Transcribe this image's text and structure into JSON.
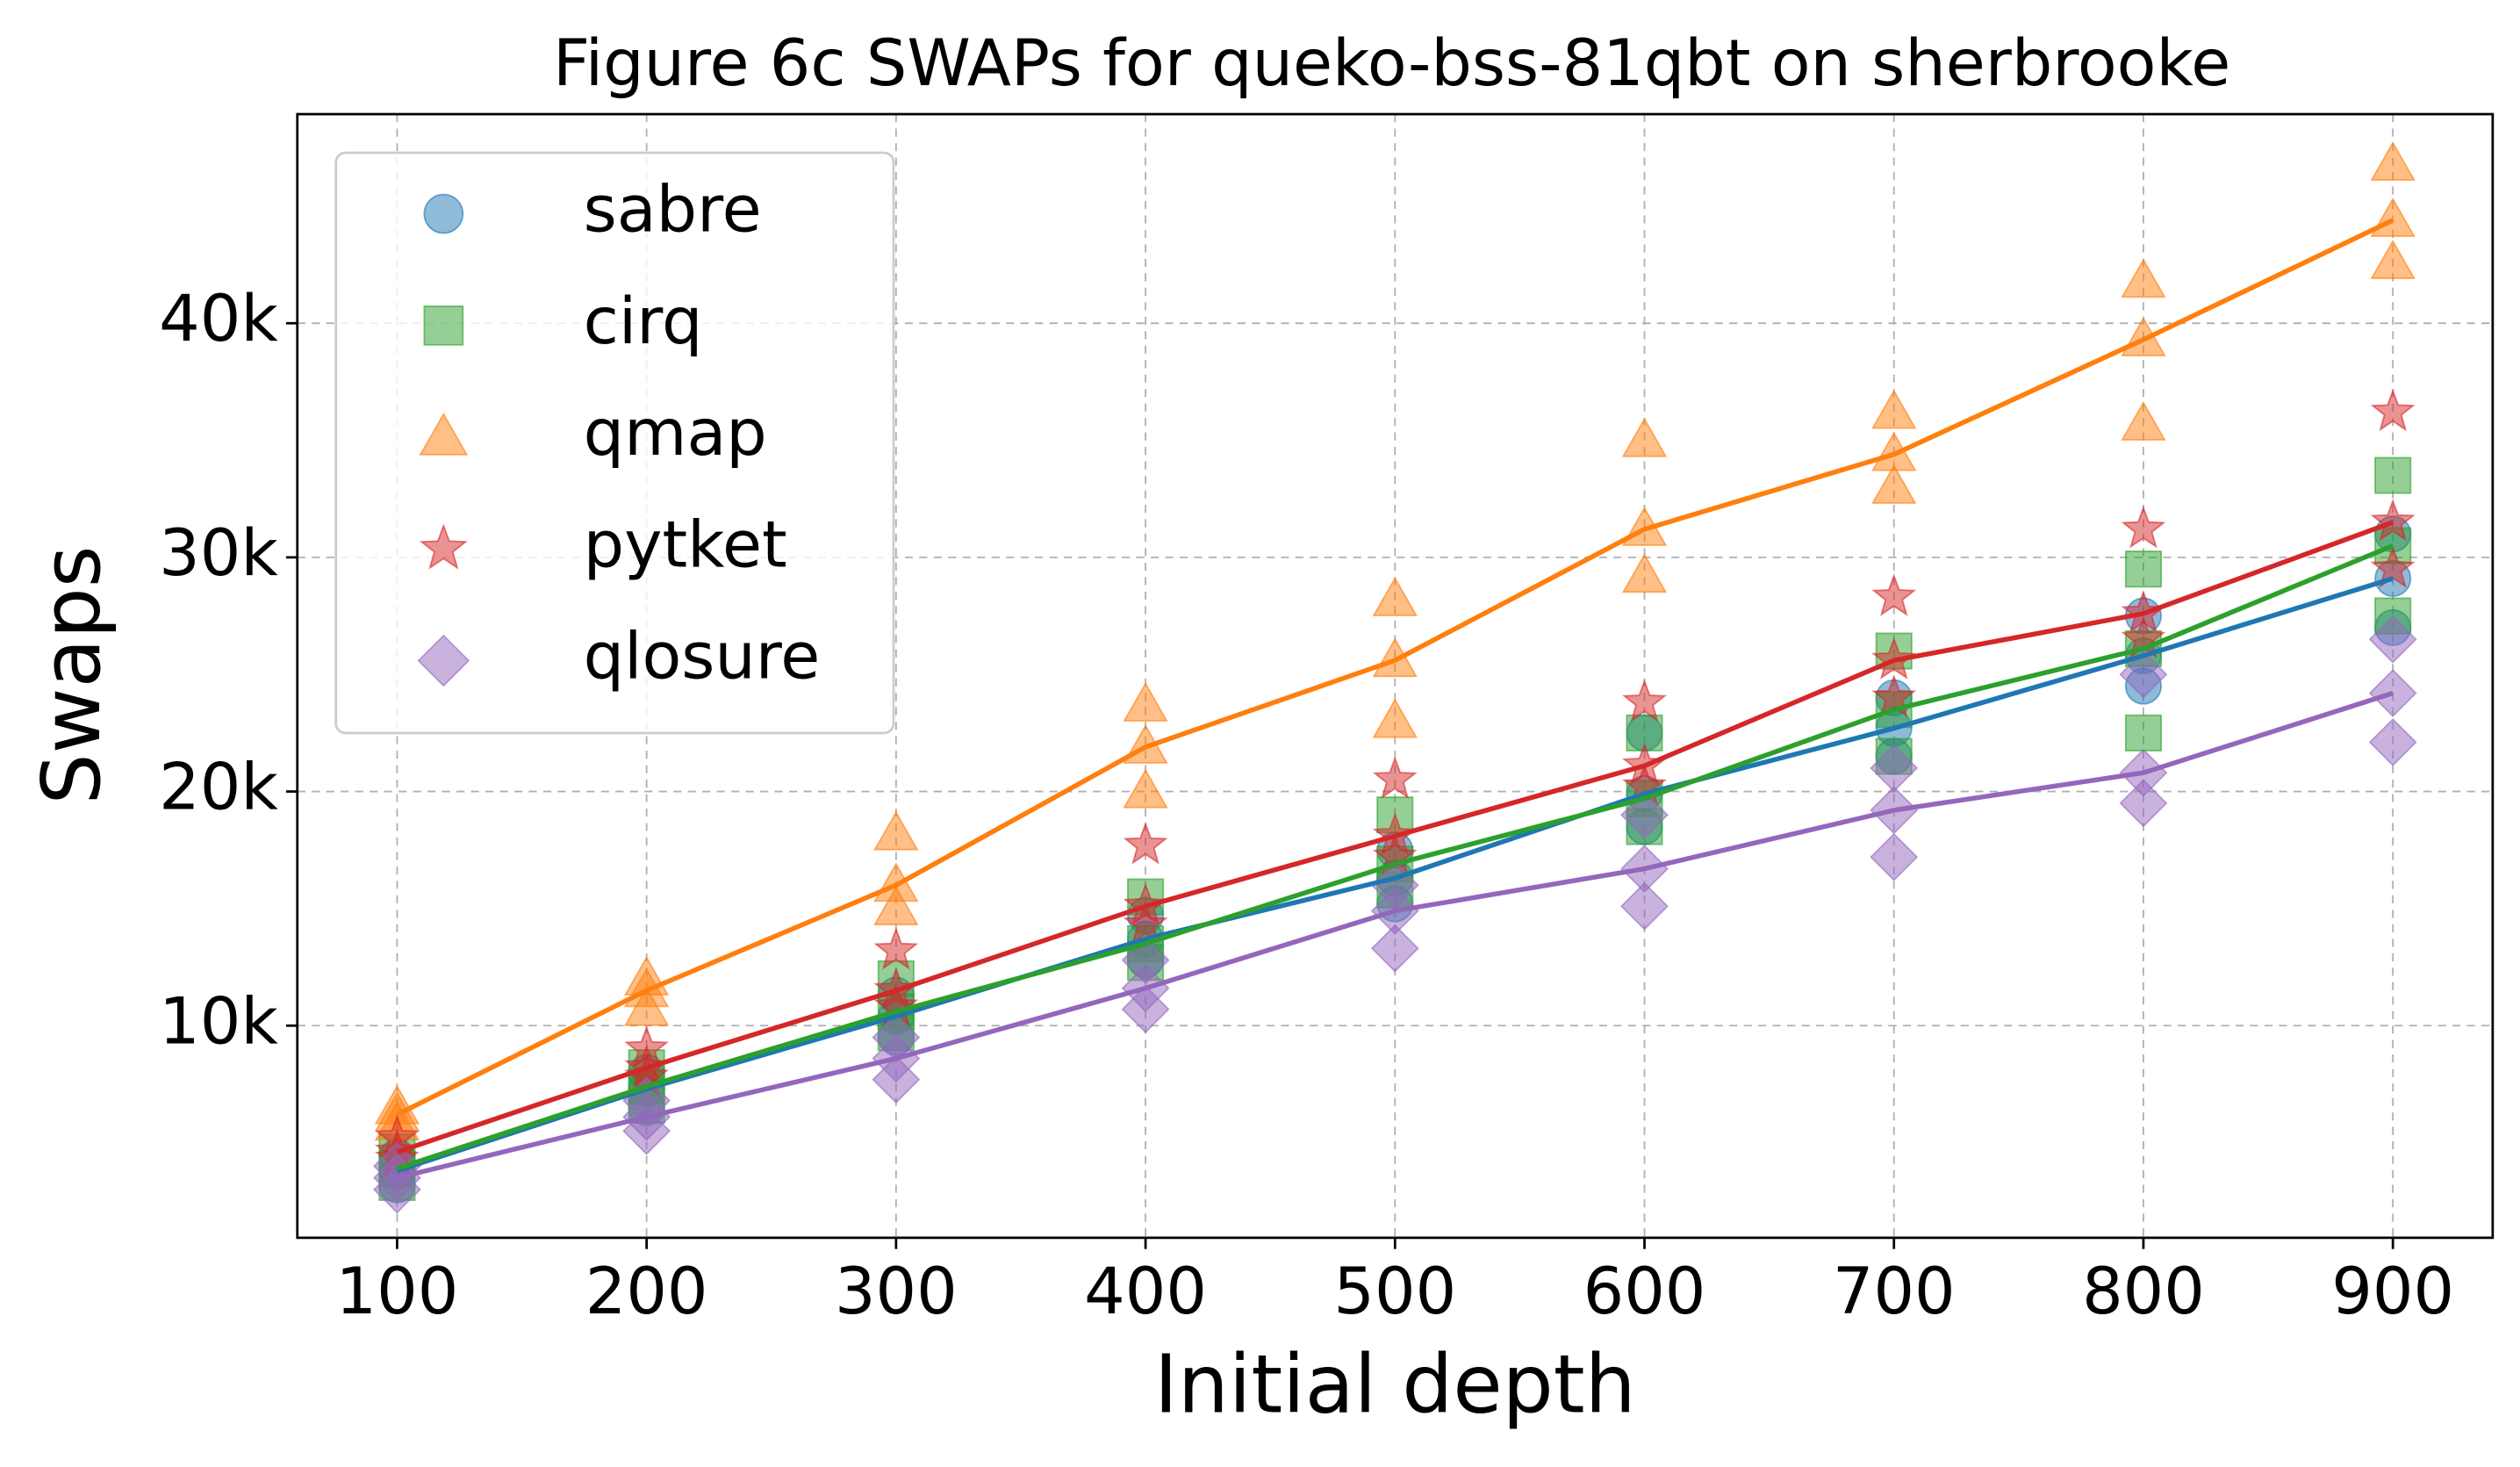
{
  "chart_data": {
    "type": "scatter",
    "title": "Figure 6c SWAPs for queko-bss-81qbt on sherbrooke",
    "xlabel": "Initial depth",
    "ylabel": "Swaps",
    "x": [
      100,
      200,
      300,
      400,
      500,
      600,
      700,
      800,
      900
    ],
    "xlim": [
      60,
      940
    ],
    "ylim": [
      940,
      48930
    ],
    "xticks": [
      100,
      200,
      300,
      400,
      500,
      600,
      700,
      800,
      900
    ],
    "yticks": [
      {
        "value": 10000,
        "label": "10k"
      },
      {
        "value": 20000,
        "label": "20k"
      },
      {
        "value": 30000,
        "label": "30k"
      },
      {
        "value": 40000,
        "label": "40k"
      }
    ],
    "grid": true,
    "legend": "upper left",
    "series": [
      {
        "name": "sabre",
        "color": "#1f77b4",
        "marker": "circle",
        "values": [
          3800,
          7300,
          10400,
          13700,
          16300,
          19900,
          22700,
          25800,
          29100
        ],
        "scatter_x": [
          100,
          100,
          100,
          200,
          200,
          200,
          300,
          300,
          300,
          400,
          400,
          400,
          500,
          500,
          500,
          600,
          600,
          600,
          700,
          700,
          700,
          800,
          800,
          800,
          900,
          900,
          900
        ],
        "scatter_y": [
          3200,
          3800,
          4400,
          6500,
          7300,
          8000,
          9500,
          10400,
          11300,
          12800,
          13700,
          14700,
          15200,
          16300,
          17500,
          18500,
          19900,
          22500,
          21500,
          22700,
          24000,
          24500,
          25800,
          27500,
          27000,
          29100,
          31000
        ]
      },
      {
        "name": "cirq",
        "color": "#2ca02c",
        "marker": "square",
        "values": [
          3900,
          7400,
          10600,
          13500,
          16900,
          19700,
          23500,
          26100,
          30500
        ],
        "scatter_x": [
          100,
          100,
          100,
          200,
          200,
          200,
          300,
          300,
          300,
          400,
          400,
          400,
          500,
          500,
          500,
          600,
          600,
          600,
          700,
          700,
          700,
          800,
          800,
          800,
          900,
          900,
          900
        ],
        "scatter_y": [
          3300,
          3900,
          4600,
          6600,
          7400,
          8200,
          9700,
          10600,
          12000,
          12700,
          13500,
          15500,
          15800,
          16900,
          19000,
          18500,
          19700,
          22500,
          21500,
          23500,
          26000,
          22500,
          26100,
          29500,
          27500,
          30500,
          33500
        ]
      },
      {
        "name": "qmap",
        "color": "#ff7f0e",
        "marker": "triangle",
        "values": [
          6200,
          11500,
          16000,
          21900,
          25600,
          31200,
          34400,
          39300,
          44400
        ],
        "scatter_x": [
          100,
          100,
          100,
          200,
          200,
          200,
          300,
          300,
          300,
          400,
          400,
          400,
          500,
          500,
          500,
          600,
          600,
          600,
          700,
          700,
          700,
          800,
          800,
          800,
          900,
          900,
          900
        ],
        "scatter_y": [
          5800,
          6200,
          6500,
          10700,
          11500,
          12000,
          15000,
          16000,
          18200,
          20000,
          21900,
          23700,
          23000,
          25600,
          28200,
          29200,
          31200,
          35000,
          33000,
          34400,
          36200,
          35700,
          39300,
          41800,
          42600,
          44400,
          46800
        ]
      },
      {
        "name": "pytket",
        "color": "#d62728",
        "marker": "star",
        "values": [
          4600,
          8200,
          11500,
          15100,
          18100,
          21100,
          25600,
          27600,
          31500
        ],
        "scatter_x": [
          100,
          100,
          100,
          200,
          200,
          200,
          300,
          300,
          300,
          400,
          400,
          400,
          500,
          500,
          500,
          600,
          600,
          600,
          700,
          700,
          700,
          800,
          800,
          800,
          900,
          900,
          900
        ],
        "scatter_y": [
          4300,
          4600,
          5200,
          7800,
          8200,
          9000,
          10800,
          11500,
          13200,
          14300,
          15100,
          17700,
          17200,
          18100,
          20500,
          20200,
          21100,
          23800,
          24000,
          25600,
          28300,
          26500,
          27600,
          31200,
          29500,
          31500,
          36200
        ]
      },
      {
        "name": "qlosure",
        "color": "#9467bd",
        "marker": "diamond",
        "values": [
          3500,
          6100,
          8600,
          11600,
          14900,
          16700,
          19200,
          20800,
          24200
        ],
        "scatter_x": [
          100,
          100,
          100,
          200,
          200,
          200,
          300,
          300,
          300,
          400,
          400,
          400,
          500,
          500,
          500,
          600,
          600,
          600,
          700,
          700,
          700,
          800,
          800,
          800,
          900,
          900,
          900
        ],
        "scatter_y": [
          3000,
          3500,
          4000,
          5500,
          6100,
          6800,
          7700,
          8600,
          9500,
          10700,
          11600,
          12800,
          13300,
          14900,
          16000,
          15100,
          16700,
          19000,
          17200,
          19200,
          21000,
          19500,
          20800,
          25000,
          22100,
          24200,
          26500
        ]
      }
    ]
  }
}
